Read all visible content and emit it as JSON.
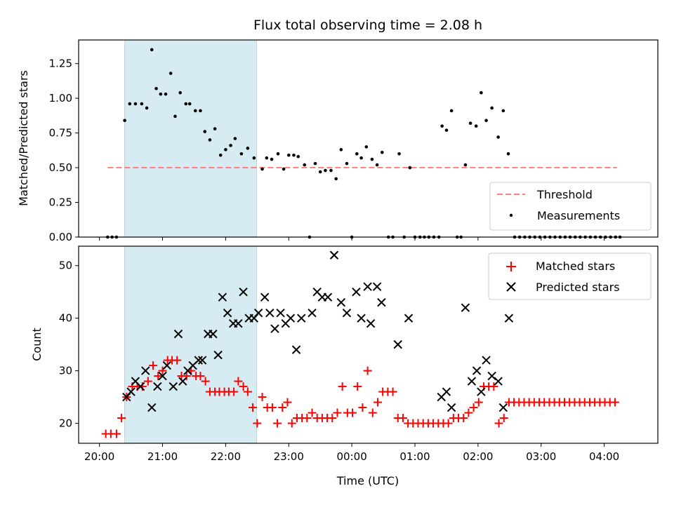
{
  "chart_data": [
    {
      "type": "scatter",
      "title": "Flux total observing time = 2.08 h",
      "xlabel": "",
      "ylabel": "Matched/Predicted stars",
      "x_unit": "hours since 20:00 UTC",
      "xlim": [
        -0.33,
        8.85
      ],
      "ylim": [
        0,
        1.42
      ],
      "yticks": [
        0.0,
        0.25,
        0.5,
        0.75,
        1.0,
        1.25
      ],
      "ytick_labels": [
        "0.00",
        "0.25",
        "0.50",
        "0.75",
        "1.00",
        "1.25"
      ],
      "shaded_interval": {
        "x0": 0.4,
        "x1": 2.49,
        "color": "#add8e6"
      },
      "threshold": {
        "name": "Threshold",
        "y": 0.5,
        "x0": 0.13,
        "x1": 8.2,
        "color": "#ff8080"
      },
      "series": [
        {
          "name": "Measurements",
          "color": "#000000",
          "points": [
            [
              0.13,
              0
            ],
            [
              0.2,
              0
            ],
            [
              0.27,
              0
            ],
            [
              0.4,
              0.84
            ],
            [
              0.48,
              0.96
            ],
            [
              0.57,
              0.96
            ],
            [
              0.67,
              0.96
            ],
            [
              0.75,
              0.93
            ],
            [
              0.83,
              1.35
            ],
            [
              0.9,
              1.07
            ],
            [
              0.97,
              1.03
            ],
            [
              1.05,
              1.03
            ],
            [
              1.13,
              1.18
            ],
            [
              1.2,
              0.87
            ],
            [
              1.28,
              1.04
            ],
            [
              1.37,
              0.96
            ],
            [
              1.43,
              0.96
            ],
            [
              1.52,
              0.91
            ],
            [
              1.6,
              0.91
            ],
            [
              1.67,
              0.76
            ],
            [
              1.75,
              0.7
            ],
            [
              1.83,
              0.78
            ],
            [
              1.92,
              0.59
            ],
            [
              2.0,
              0.63
            ],
            [
              2.08,
              0.66
            ],
            [
              2.15,
              0.71
            ],
            [
              2.25,
              0.6
            ],
            [
              2.35,
              0.64
            ],
            [
              2.45,
              0.57
            ],
            [
              2.58,
              0.49
            ],
            [
              2.65,
              0.57
            ],
            [
              2.73,
              0.56
            ],
            [
              2.83,
              0.6
            ],
            [
              2.92,
              0.49
            ],
            [
              3.0,
              0.59
            ],
            [
              3.08,
              0.59
            ],
            [
              3.15,
              0.58
            ],
            [
              3.25,
              0.52
            ],
            [
              3.33,
              0.0
            ],
            [
              3.42,
              0.53
            ],
            [
              3.5,
              0.47
            ],
            [
              3.58,
              0.48
            ],
            [
              3.67,
              0.48
            ],
            [
              3.75,
              0.42
            ],
            [
              3.83,
              0.63
            ],
            [
              3.92,
              0.53
            ],
            [
              4.0,
              0.0
            ],
            [
              4.08,
              0.6
            ],
            [
              4.15,
              0.57
            ],
            [
              4.23,
              0.65
            ],
            [
              4.32,
              0.56
            ],
            [
              4.4,
              0.52
            ],
            [
              4.48,
              0.61
            ],
            [
              4.58,
              0.0
            ],
            [
              4.65,
              0.0
            ],
            [
              4.75,
              0.6
            ],
            [
              4.83,
              0.0
            ],
            [
              4.92,
              0.5
            ],
            [
              5.0,
              0.0
            ],
            [
              5.08,
              0.0
            ],
            [
              5.15,
              0.0
            ],
            [
              5.22,
              0.0
            ],
            [
              5.3,
              0.0
            ],
            [
              5.38,
              0.0
            ],
            [
              5.43,
              0.8
            ],
            [
              5.5,
              0.77
            ],
            [
              5.58,
              0.91
            ],
            [
              5.67,
              0.0
            ],
            [
              5.73,
              0.0
            ],
            [
              5.8,
              0.52
            ],
            [
              5.88,
              0.82
            ],
            [
              5.97,
              0.8
            ],
            [
              6.05,
              1.04
            ],
            [
              6.13,
              0.84
            ],
            [
              6.22,
              0.93
            ],
            [
              6.32,
              0.72
            ],
            [
              6.4,
              0.91
            ],
            [
              6.48,
              0.6
            ],
            [
              6.58,
              0
            ],
            [
              6.66,
              0
            ],
            [
              6.74,
              0
            ],
            [
              6.82,
              0
            ],
            [
              6.9,
              0
            ],
            [
              6.98,
              0
            ],
            [
              7.06,
              0
            ],
            [
              7.14,
              0
            ],
            [
              7.22,
              0
            ],
            [
              7.3,
              0
            ],
            [
              7.38,
              0
            ],
            [
              7.46,
              0
            ],
            [
              7.54,
              0
            ],
            [
              7.62,
              0
            ],
            [
              7.7,
              0
            ],
            [
              7.78,
              0
            ],
            [
              7.86,
              0
            ],
            [
              7.94,
              0
            ],
            [
              8.02,
              0
            ],
            [
              8.1,
              0
            ],
            [
              8.18,
              0
            ],
            [
              8.25,
              0
            ]
          ]
        }
      ],
      "legend": {
        "location": "lower right",
        "entries": [
          "Threshold",
          "Measurements"
        ]
      },
      "grid": false
    },
    {
      "type": "scatter",
      "title": "",
      "xlabel": "Time (UTC)",
      "ylabel": "Count",
      "x_unit": "hours since 20:00 UTC",
      "xlim": [
        -0.33,
        8.85
      ],
      "ylim": [
        16.2,
        53.7
      ],
      "xticks": [
        0,
        1,
        2,
        3,
        4,
        5,
        6,
        7,
        8
      ],
      "xtick_labels": [
        "20:00",
        "21:00",
        "22:00",
        "23:00",
        "00:00",
        "01:00",
        "02:00",
        "03:00",
        "04:00"
      ],
      "yticks": [
        20,
        30,
        40,
        50
      ],
      "ytick_labels": [
        "20",
        "30",
        "40",
        "50"
      ],
      "shaded_interval": {
        "x0": 0.4,
        "x1": 2.49,
        "color": "#add8e6"
      },
      "series": [
        {
          "name": "Matched stars",
          "marker": "+",
          "color": "#ff0000",
          "points": [
            [
              0.1,
              18
            ],
            [
              0.18,
              18
            ],
            [
              0.27,
              18
            ],
            [
              0.35,
              21
            ],
            [
              0.43,
              25
            ],
            [
              0.52,
              27
            ],
            [
              0.6,
              27
            ],
            [
              0.68,
              27
            ],
            [
              0.77,
              28
            ],
            [
              0.85,
              31
            ],
            [
              0.93,
              29
            ],
            [
              1.0,
              30
            ],
            [
              1.08,
              32
            ],
            [
              1.15,
              32
            ],
            [
              1.23,
              32
            ],
            [
              1.3,
              29
            ],
            [
              1.38,
              29
            ],
            [
              1.45,
              30
            ],
            [
              1.53,
              29
            ],
            [
              1.6,
              29
            ],
            [
              1.68,
              28
            ],
            [
              1.75,
              26
            ],
            [
              1.83,
              26
            ],
            [
              1.9,
              26
            ],
            [
              1.98,
              26
            ],
            [
              2.05,
              26
            ],
            [
              2.13,
              26
            ],
            [
              2.2,
              28
            ],
            [
              2.28,
              27
            ],
            [
              2.35,
              26
            ],
            [
              2.43,
              23
            ],
            [
              2.5,
              20
            ],
            [
              2.58,
              25
            ],
            [
              2.66,
              23
            ],
            [
              2.74,
              23
            ],
            [
              2.82,
              20
            ],
            [
              2.9,
              23
            ],
            [
              2.98,
              24
            ],
            [
              3.05,
              20
            ],
            [
              3.13,
              21
            ],
            [
              3.21,
              21
            ],
            [
              3.29,
              21
            ],
            [
              3.37,
              22
            ],
            [
              3.45,
              21
            ],
            [
              3.53,
              21
            ],
            [
              3.61,
              21
            ],
            [
              3.69,
              21
            ],
            [
              3.77,
              22
            ],
            [
              3.85,
              27
            ],
            [
              3.93,
              22
            ],
            [
              4.01,
              22
            ],
            [
              4.09,
              27
            ],
            [
              4.17,
              23
            ],
            [
              4.25,
              30
            ],
            [
              4.33,
              22
            ],
            [
              4.41,
              24
            ],
            [
              4.49,
              26
            ],
            [
              4.57,
              26
            ],
            [
              4.65,
              26
            ],
            [
              4.73,
              21
            ],
            [
              4.81,
              21
            ],
            [
              4.89,
              20
            ],
            [
              4.97,
              20
            ],
            [
              5.05,
              20
            ],
            [
              5.13,
              20
            ],
            [
              5.21,
              20
            ],
            [
              5.29,
              20
            ],
            [
              5.37,
              20
            ],
            [
              5.45,
              20
            ],
            [
              5.53,
              20
            ],
            [
              5.61,
              21
            ],
            [
              5.69,
              21
            ],
            [
              5.77,
              21
            ],
            [
              5.85,
              22
            ],
            [
              5.93,
              23
            ],
            [
              6.01,
              24
            ],
            [
              6.09,
              27
            ],
            [
              6.17,
              27
            ],
            [
              6.25,
              27
            ],
            [
              6.33,
              20
            ],
            [
              6.41,
              21
            ],
            [
              6.49,
              24
            ],
            [
              6.57,
              24
            ],
            [
              6.65,
              24
            ],
            [
              6.73,
              24
            ],
            [
              6.81,
              24
            ],
            [
              6.89,
              24
            ],
            [
              6.97,
              24
            ],
            [
              7.05,
              24
            ],
            [
              7.13,
              24
            ],
            [
              7.21,
              24
            ],
            [
              7.29,
              24
            ],
            [
              7.37,
              24
            ],
            [
              7.45,
              24
            ],
            [
              7.53,
              24
            ],
            [
              7.61,
              24
            ],
            [
              7.69,
              24
            ],
            [
              7.77,
              24
            ],
            [
              7.85,
              24
            ],
            [
              7.93,
              24
            ],
            [
              8.01,
              24
            ],
            [
              8.09,
              24
            ],
            [
              8.17,
              24
            ]
          ]
        },
        {
          "name": "Predicted stars",
          "marker": "x",
          "color": "#000000",
          "points": [
            [
              0.43,
              25
            ],
            [
              0.5,
              26
            ],
            [
              0.57,
              28
            ],
            [
              0.65,
              27
            ],
            [
              0.73,
              30
            ],
            [
              0.83,
              23
            ],
            [
              0.92,
              27
            ],
            [
              1.0,
              29
            ],
            [
              1.07,
              31
            ],
            [
              1.17,
              27
            ],
            [
              1.25,
              37
            ],
            [
              1.32,
              28
            ],
            [
              1.4,
              30
            ],
            [
              1.48,
              31
            ],
            [
              1.57,
              32
            ],
            [
              1.63,
              32
            ],
            [
              1.72,
              37
            ],
            [
              1.8,
              37
            ],
            [
              1.88,
              33
            ],
            [
              1.95,
              44
            ],
            [
              2.03,
              41
            ],
            [
              2.12,
              39
            ],
            [
              2.2,
              39
            ],
            [
              2.28,
              45
            ],
            [
              2.37,
              40
            ],
            [
              2.45,
              40
            ],
            [
              2.52,
              41
            ],
            [
              2.62,
              44
            ],
            [
              2.7,
              41
            ],
            [
              2.78,
              38
            ],
            [
              2.87,
              41
            ],
            [
              2.95,
              39
            ],
            [
              3.03,
              40
            ],
            [
              3.12,
              34
            ],
            [
              3.2,
              40
            ],
            [
              3.37,
              41
            ],
            [
              3.45,
              45
            ],
            [
              3.53,
              44
            ],
            [
              3.62,
              44
            ],
            [
              3.72,
              52
            ],
            [
              3.83,
              43
            ],
            [
              3.92,
              41
            ],
            [
              4.07,
              45
            ],
            [
              4.15,
              40
            ],
            [
              4.25,
              46
            ],
            [
              4.3,
              39
            ],
            [
              4.4,
              46
            ],
            [
              4.47,
              43
            ],
            [
              4.73,
              35
            ],
            [
              4.9,
              40
            ],
            [
              5.42,
              25
            ],
            [
              5.5,
              26
            ],
            [
              5.58,
              23
            ],
            [
              5.8,
              42
            ],
            [
              5.9,
              28
            ],
            [
              5.98,
              30
            ],
            [
              6.05,
              26
            ],
            [
              6.13,
              32
            ],
            [
              6.22,
              29
            ],
            [
              6.32,
              28
            ],
            [
              6.4,
              23
            ],
            [
              6.49,
              40
            ]
          ]
        }
      ],
      "legend": {
        "location": "upper right",
        "entries": [
          "Matched stars",
          "Predicted stars"
        ]
      },
      "grid": false
    }
  ]
}
